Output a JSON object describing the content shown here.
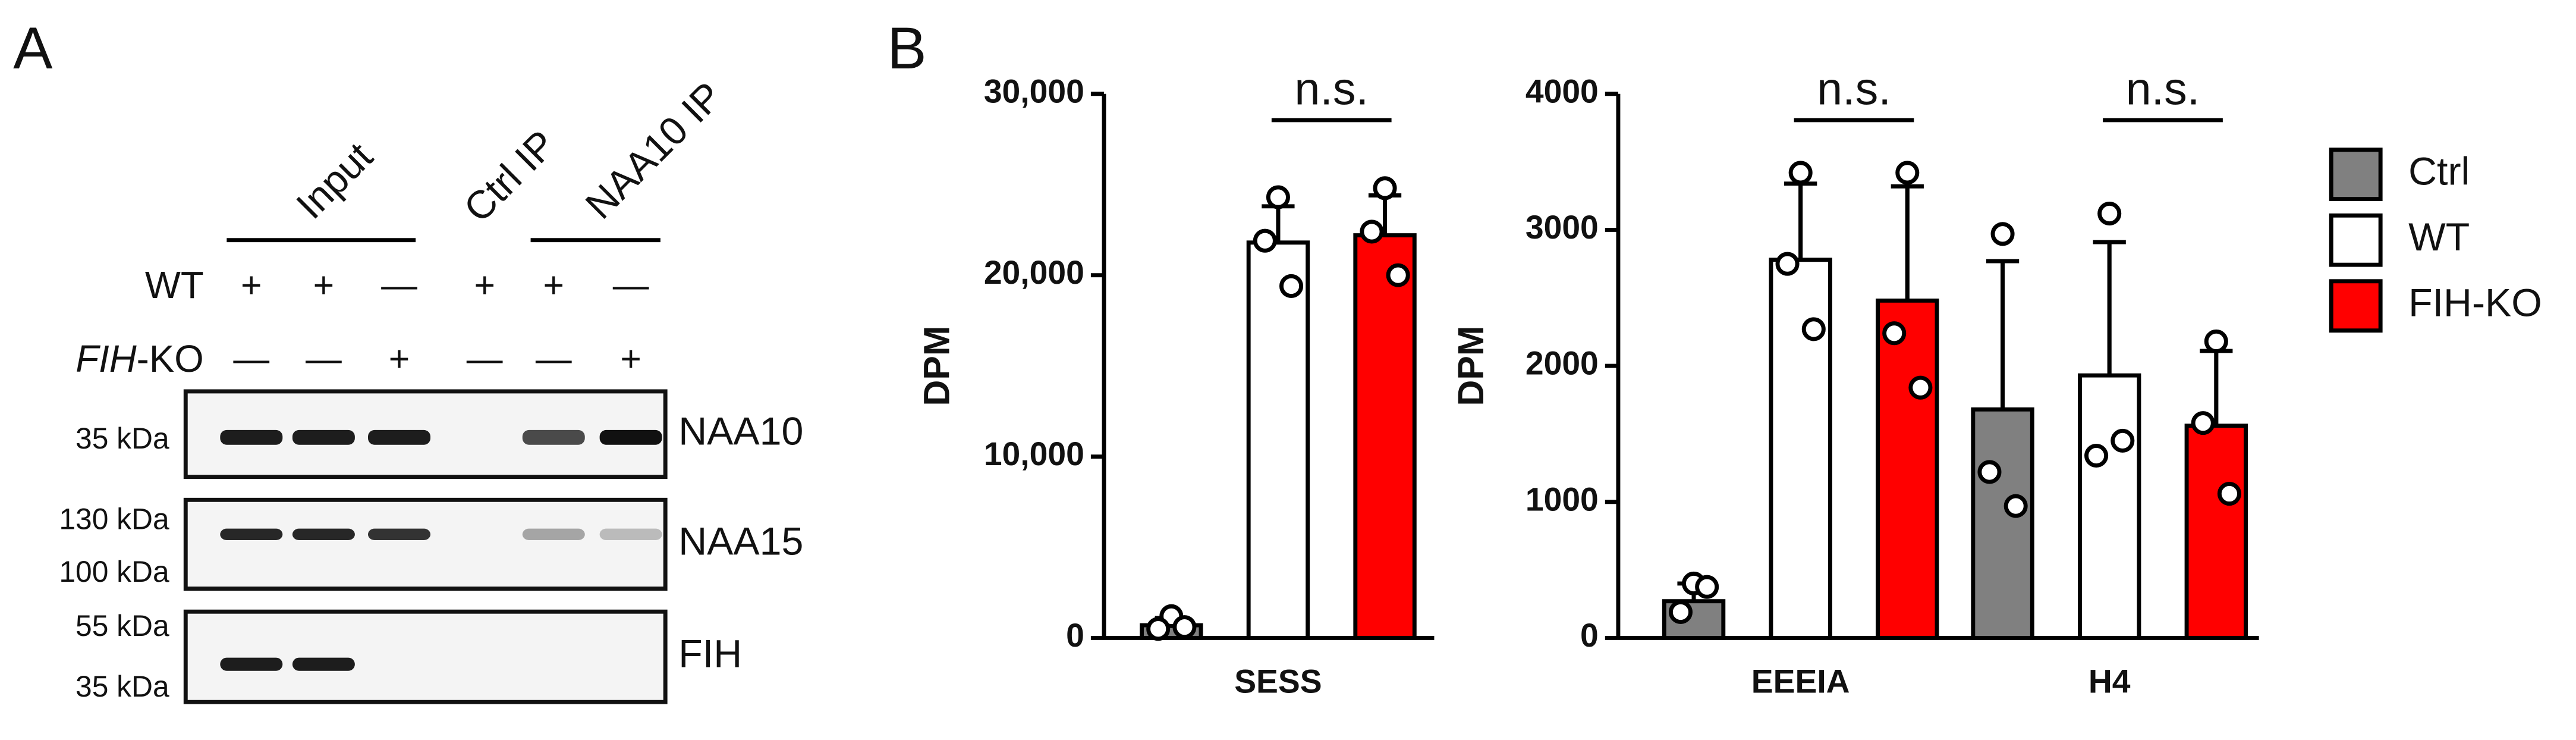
{
  "panel_labels": [
    "A",
    "B"
  ],
  "blot": {
    "columns": [
      "Input",
      "Ctrl IP",
      "NAA10 IP"
    ],
    "rows": [
      {
        "label": [
          "WT"
        ],
        "marks": [
          "+",
          "+",
          "—",
          "+",
          "+",
          "—"
        ]
      },
      {
        "label": [
          "FIH",
          "-KO"
        ],
        "marks": [
          "—",
          "—",
          "+",
          "—",
          "—",
          "+"
        ]
      }
    ],
    "panels": [
      {
        "name": "NAA10",
        "markers": [
          "35 kDa"
        ]
      },
      {
        "name": "NAA15",
        "markers": [
          "130 kDa",
          "100 kDa"
        ]
      },
      {
        "name": "FIH",
        "markers": [
          "55 kDa",
          "35 kDa"
        ]
      }
    ]
  },
  "chart_data": [
    {
      "type": "bar",
      "ylabel": "DPM",
      "categories": [
        "SESS"
      ],
      "ylim": [
        0,
        30000
      ],
      "yticks": [
        0,
        {
          "value": 10000,
          "label": "10,000"
        },
        {
          "value": 20000,
          "label": "20,000"
        },
        {
          "value": 30000,
          "label": "30,000"
        }
      ],
      "annotations": [
        "n.s."
      ],
      "series": [
        {
          "color": "#808080",
          "values": [
            700
          ],
          "errors": [
            400
          ],
          "points": [
            [
              1200,
              500,
              600
            ]
          ]
        },
        {
          "color": "#ffffff",
          "values": [
            21800
          ],
          "errors": [
            2000
          ],
          "points": [
            [
              24300,
              21900,
              19400
            ]
          ]
        },
        {
          "color": "#ff0000",
          "values": [
            22200
          ],
          "errors": [
            2200
          ],
          "points": [
            [
              24800,
              22400,
              20000
            ]
          ]
        }
      ]
    },
    {
      "type": "bar",
      "ylabel": "DPM",
      "categories": [
        "EEEIA",
        "H4"
      ],
      "ylim": [
        0,
        4000
      ],
      "yticks": [
        0,
        1000,
        2000,
        3000,
        4000
      ],
      "annotations": [
        "n.s.",
        "n.s."
      ],
      "legend": "right",
      "series": [
        {
          "name": "Ctrl",
          "color": "#808080",
          "values": [
            270,
            1680
          ],
          "errors": [
            130,
            1090
          ],
          "points": [
            [
              400,
              190,
              375
            ],
            [
              2970,
              1220,
              970
            ]
          ]
        },
        {
          "name": "WT",
          "color": "#ffffff",
          "values": [
            2780,
            1930
          ],
          "errors": [
            560,
            980
          ],
          "points": [
            [
              3420,
              2750,
              2270
            ],
            [
              3120,
              1340,
              1450
            ]
          ]
        },
        {
          "name": "FIH-KO",
          "color": "#ff0000",
          "values": [
            2480,
            1560
          ],
          "errors": [
            840,
            550
          ],
          "points": [
            [
              3420,
              2240,
              1840
            ],
            [
              2180,
              1580,
              1060
            ]
          ]
        }
      ]
    }
  ]
}
